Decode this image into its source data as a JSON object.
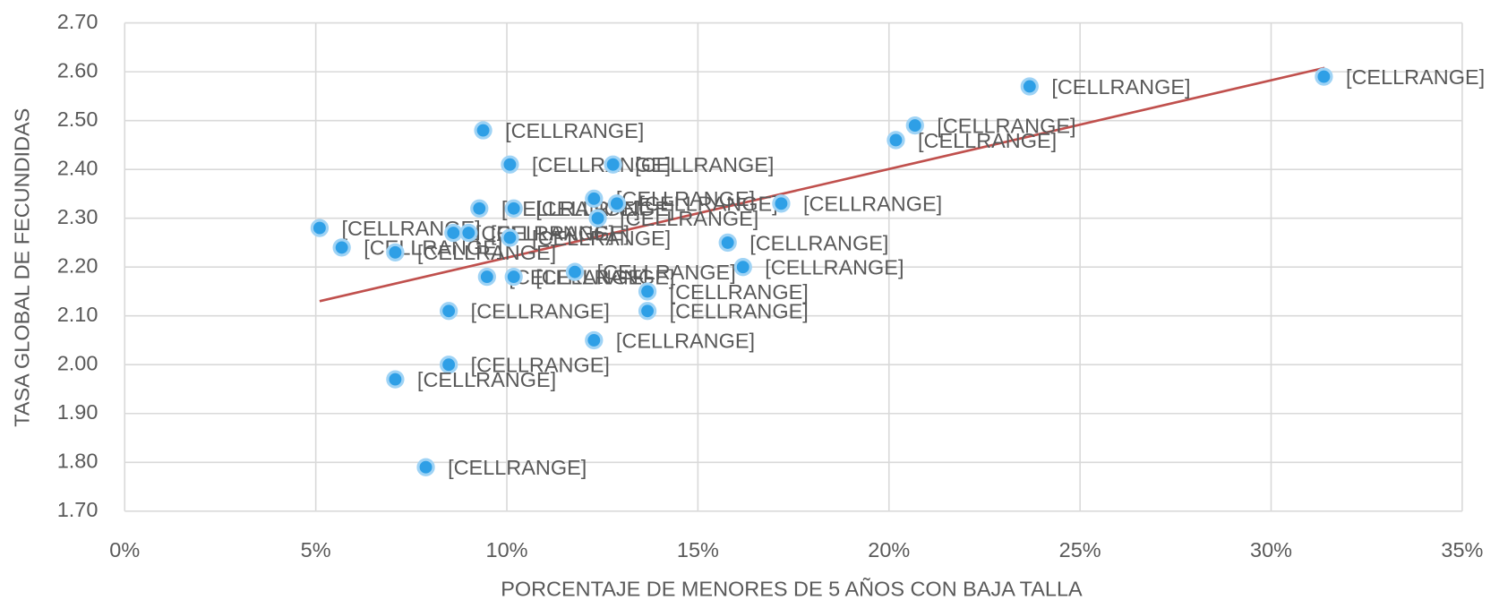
{
  "chart_data": {
    "type": "scatter",
    "x_label": "PORCENTAJE DE MENORES DE 5 AÑOS CON BAJA TALLA",
    "y_label": "TASA GLOBAL DE FECUNDIDAS",
    "x": [
      5.1,
      5.68,
      7.08,
      8.6,
      9.0,
      9.28,
      9.38,
      10.08,
      10.18,
      10.08,
      9.48,
      10.18,
      8.48,
      8.48,
      7.08,
      7.88,
      11.78,
      12.28,
      12.38,
      12.88,
      12.78,
      12.28,
      13.68,
      13.68,
      15.78,
      16.18,
      17.18,
      20.18,
      20.68,
      23.68,
      31.38
    ],
    "values": [
      2.28,
      2.24,
      2.23,
      2.27,
      2.27,
      2.32,
      2.48,
      2.41,
      2.32,
      2.26,
      2.18,
      2.18,
      2.11,
      2.0,
      1.97,
      1.79,
      2.19,
      2.34,
      2.3,
      2.33,
      2.41,
      2.05,
      2.15,
      2.11,
      2.25,
      2.2,
      2.33,
      2.46,
      2.49,
      2.57,
      2.59
    ],
    "point_labels": [
      "[CELLRANGE]",
      "[CELLRANGE]",
      "[CELLRANGE]",
      "[CELLRANGE]",
      "[CELLRANGE]",
      "[CELLRANGE]",
      "[CELLRANGE]",
      "[CELLRANGE]",
      "[CELLRANGE]",
      "[CELLRANGE]",
      "[CELLRANGE]",
      "[CELLRANGE]",
      "[CELLRANGE]",
      "[CELLRANGE]",
      "[CELLRANGE]",
      "[CELLRANGE]",
      "[CELLRANGE]",
      "[CELLRANGE]",
      "[CELLRANGE]",
      "[CELLRANGE]",
      "[CELLRANGE]",
      "[CELLRANGE]",
      "[CELLRANGE]",
      "[CELLRANGE]",
      "[CELLRANGE]",
      "[CELLRANGE]",
      "[CELLRANGE]",
      "[CELLRANGE]",
      "[CELLRANGE]",
      "[CELLRANGE]",
      "[CELLRANGE]"
    ],
    "color": "#2e9fe6",
    "trendline": {
      "x": [
        5.1,
        31.4
      ],
      "y": [
        2.13,
        2.608
      ],
      "color": "#c0504d"
    },
    "xlim": [
      0,
      35
    ],
    "xticks": [
      {
        "value": 0,
        "label": "0%"
      },
      {
        "value": 5,
        "label": "5%"
      },
      {
        "value": 10,
        "label": "10%"
      },
      {
        "value": 15,
        "label": "15%"
      },
      {
        "value": 20,
        "label": "20%"
      },
      {
        "value": 25,
        "label": "25%"
      },
      {
        "value": 30,
        "label": "30%"
      },
      {
        "value": 35,
        "label": "35%"
      }
    ],
    "ylim": [
      1.7,
      2.7
    ],
    "yticks": [
      {
        "value": 1.7,
        "label": "1.70"
      },
      {
        "value": 1.8,
        "label": "1.80"
      },
      {
        "value": 1.9,
        "label": "1.90"
      },
      {
        "value": 2.0,
        "label": "2.00"
      },
      {
        "value": 2.1,
        "label": "2.10"
      },
      {
        "value": 2.2,
        "label": "2.20"
      },
      {
        "value": 2.3,
        "label": "2.30"
      },
      {
        "value": 2.4,
        "label": "2.40"
      },
      {
        "value": 2.5,
        "label": "2.50"
      },
      {
        "value": 2.6,
        "label": "2.60"
      },
      {
        "value": 2.7,
        "label": "2.70"
      }
    ],
    "grid": true
  }
}
